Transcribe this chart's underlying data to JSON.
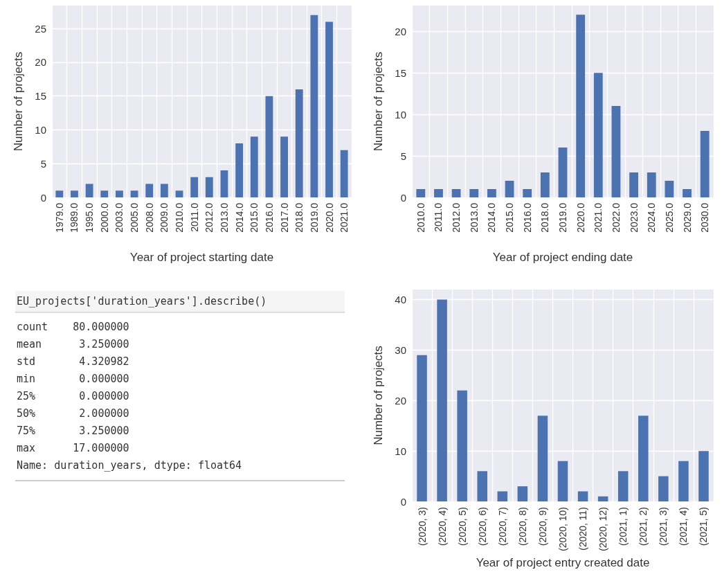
{
  "chart_data": [
    {
      "type": "bar",
      "xlabel": "Year of project starting date",
      "ylabel": "Number of projects",
      "categories": [
        "1979.0",
        "1989.0",
        "1995.0",
        "2000.0",
        "2003.0",
        "2005.0",
        "2008.0",
        "2009.0",
        "2010.0",
        "2011.0",
        "2012.0",
        "2013.0",
        "2014.0",
        "2015.0",
        "2016.0",
        "2017.0",
        "2018.0",
        "2019.0",
        "2020.0",
        "2021.0"
      ],
      "values": [
        1,
        1,
        2,
        1,
        1,
        1,
        2,
        2,
        1,
        3,
        3,
        4,
        8,
        9,
        15,
        9,
        16,
        27,
        26,
        7
      ],
      "color": "#4c72b0",
      "ylim": [
        0,
        28.4
      ],
      "yticks": [
        0,
        5,
        10,
        15,
        20,
        25
      ],
      "grid": true
    },
    {
      "type": "bar",
      "xlabel": "Year of project ending date",
      "ylabel": "Number of projects",
      "categories": [
        "2010.0",
        "2011.0",
        "2012.0",
        "2013.0",
        "2014.0",
        "2015.0",
        "2016.0",
        "2018.0",
        "2019.0",
        "2020.0",
        "2021.0",
        "2022.0",
        "2023.0",
        "2024.0",
        "2025.0",
        "2029.0",
        "2030.0"
      ],
      "values": [
        1,
        1,
        1,
        1,
        1,
        2,
        1,
        3,
        6,
        22,
        15,
        11,
        3,
        3,
        2,
        1,
        8
      ],
      "color": "#4c72b0",
      "ylim": [
        0,
        23.1
      ],
      "yticks": [
        0,
        5,
        10,
        15,
        20
      ],
      "grid": true
    },
    {
      "type": "other",
      "title": "EU_projects['duration_years'].describe()",
      "annotations": [
        "count    80.000000",
        "mean      3.250000",
        "std       4.320982",
        "min       0.000000",
        "25%       0.000000",
        "50%       2.000000",
        "75%       3.250000",
        "max      17.000000",
        "Name: duration_years, dtype: float64"
      ]
    },
    {
      "type": "bar",
      "xlabel": "Year of project entry created date",
      "ylabel": "Number of projects",
      "categories": [
        "(2020, 3)",
        "(2020, 4)",
        "(2020, 5)",
        "(2020, 6)",
        "(2020, 7)",
        "(2020, 8)",
        "(2020, 9)",
        "(2020, 10)",
        "(2020, 11)",
        "(2020, 12)",
        "(2021, 1)",
        "(2021, 2)",
        "(2021, 3)",
        "(2021, 4)",
        "(2021, 5)"
      ],
      "values": [
        29,
        40,
        22,
        6,
        2,
        3,
        17,
        8,
        2,
        1,
        6,
        17,
        5,
        8,
        10
      ],
      "color": "#4c72b0",
      "ylim": [
        0,
        42
      ],
      "yticks": [
        0,
        10,
        20,
        30,
        40
      ],
      "grid": true
    }
  ]
}
